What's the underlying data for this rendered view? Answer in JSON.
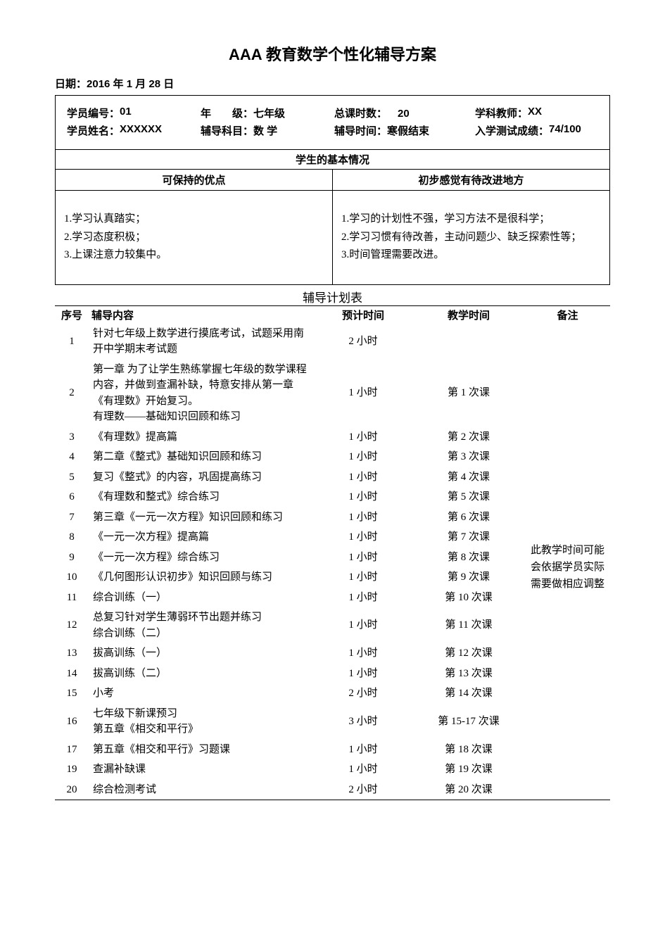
{
  "title": "AAA 教育数学个性化辅导方案",
  "date_label": "日期：",
  "date_value": "2016 年 1 月 28 日",
  "info": {
    "row1": {
      "student_id_label": "学员编号：",
      "student_id_value": "01",
      "grade_label": "年　　级：",
      "grade_value": "七年级",
      "total_hours_label": "总课时数：",
      "total_hours_value": "　20",
      "teacher_label": "学科教师：",
      "teacher_value": "XX"
    },
    "row2": {
      "student_name_label": "学员姓名：",
      "student_name_value": "XXXXXX",
      "subject_label": "辅导科目：",
      "subject_value": "数 学",
      "period_label": "辅导时间：",
      "period_value": "寒假结束",
      "score_label": "入学测试成绩：",
      "score_value": "74/100"
    }
  },
  "basic_header": "学生的基本情况",
  "strengths_header": "可保持的优点",
  "improve_header": "初步感觉有待改进地方",
  "strengths": {
    "l1": "1.学习认真踏实；",
    "l2": "2.学习态度积极；",
    "l3": "3.上课注意力较集中。"
  },
  "improvements": {
    "l1": "1.学习的计划性不强，学习方法不是很科学；",
    "l2": "2.学习习惯有待改善，主动问题少、缺乏探索性等；",
    "l3": "3.时间管理需要改进。"
  },
  "plan_caption": "辅导计划表",
  "plan_headers": {
    "sn": "序号",
    "content": "辅导内容",
    "est": "预计时间",
    "sched": "教学时间",
    "note": "备注"
  },
  "plan_rows": [
    {
      "sn": "1",
      "content": "针对七年级上数学进行摸底考试，试题采用南开中学期末考试题",
      "est": "2 小时",
      "sched": ""
    },
    {
      "sn": "2",
      "content": "第一章 为了让学生熟练掌握七年级的数学课程内容，并做到查漏补缺，特意安排从第一章《有理数》开始复习。\n有理数——基础知识回顾和练习",
      "est": "1 小时",
      "sched": "第 1 次课"
    },
    {
      "sn": "3",
      "content": "《有理数》提高篇",
      "est": "1 小时",
      "sched": "第 2 次课"
    },
    {
      "sn": "4",
      "content": "第二章《整式》基础知识回顾和练习",
      "est": "1 小时",
      "sched": "第 3 次课"
    },
    {
      "sn": "5",
      "content": "复习《整式》的内容，巩固提高练习",
      "est": "1 小时",
      "sched": "第 4 次课"
    },
    {
      "sn": "6",
      "content": "《有理数和整式》综合练习",
      "est": "1 小时",
      "sched": "第 5 次课"
    },
    {
      "sn": "7",
      "content": "第三章《一元一次方程》知识回顾和练习",
      "est": "1 小时",
      "sched": "第 6 次课"
    },
    {
      "sn": "8",
      "content": "《一元一次方程》提高篇",
      "est": "1 小时",
      "sched": "第 7 次课"
    },
    {
      "sn": "9",
      "content": "《一元一次方程》综合练习",
      "est": "1 小时",
      "sched": "第 8 次课"
    },
    {
      "sn": "10",
      "content": "《几何图形认识初步》知识回顾与练习",
      "est": "1 小时",
      "sched": "第 9 次课"
    },
    {
      "sn": "11",
      "content": "综合训练（一）",
      "est": "1 小时",
      "sched": "第 10 次课"
    },
    {
      "sn": "12",
      "content": "总复习针对学生薄弱环节出题并练习\n综合训练（二）",
      "est": "1 小时",
      "sched": "第 11 次课"
    },
    {
      "sn": "13",
      "content": "拔高训练（一）",
      "est": "1 小时",
      "sched": "第 12 次课"
    },
    {
      "sn": "14",
      "content": "拔高训练（二）",
      "est": "1 小时",
      "sched": "第 13 次课"
    },
    {
      "sn": "15",
      "content": "小考",
      "est": "2 小时",
      "sched": "第 14 次课"
    },
    {
      "sn": "16",
      "content": "七年级下新课预习\n第五章《相交和平行》",
      "est": "3 小时",
      "sched": "第 15-17 次课"
    },
    {
      "sn": "17",
      "content": "第五章《相交和平行》习题课",
      "est": "1 小时",
      "sched": "第 18 次课"
    },
    {
      "sn": "19",
      "content": "查漏补缺课",
      "est": "1 小时",
      "sched": "第 19 次课"
    },
    {
      "sn": "20",
      "content": "综合检测考试",
      "est": "2 小时",
      "sched": "第 20 次课"
    }
  ],
  "plan_note": "此教学时间可能会依据学员实际需要做相应调整"
}
